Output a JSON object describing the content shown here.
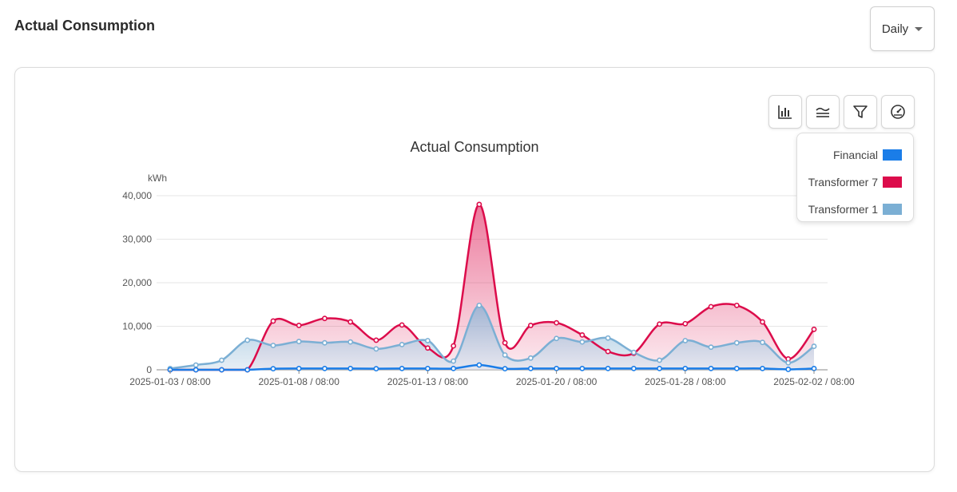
{
  "header": {
    "title": "Actual Consumption"
  },
  "period_select": {
    "value": "Daily"
  },
  "toolbar": [
    {
      "icon": "bar-chart-icon"
    },
    {
      "icon": "stacked-lines-icon"
    },
    {
      "icon": "filter-icon"
    },
    {
      "icon": "gauge-icon"
    }
  ],
  "legend": [
    {
      "label": "Financial",
      "color": "#1a7de8"
    },
    {
      "label": "Transformer 7",
      "color": "#dc0c4b"
    },
    {
      "label": "Transformer 1",
      "color": "#7bafd4"
    }
  ],
  "chart_data": {
    "type": "area",
    "title": "Actual Consumption",
    "ylabel": "kWh",
    "ylim": [
      0,
      40000
    ],
    "yticks": [
      0,
      10000,
      20000,
      30000,
      40000
    ],
    "ytick_labels": [
      "0",
      "10,000",
      "20,000",
      "30,000",
      "40,000"
    ],
    "xtick_labels": [
      "2025-01-03 / 08:00",
      "2025-01-08 / 08:00",
      "2025-01-13 / 08:00",
      "2025-01-20 / 08:00",
      "2025-01-28 / 08:00",
      "2025-02-02 / 08:00"
    ],
    "xtick_index": [
      0,
      5,
      10,
      15,
      20,
      25
    ],
    "grid": true,
    "legend_position": "top-right",
    "series": [
      {
        "name": "Transformer 7",
        "color": "#dc0c4b",
        "values": [
          0,
          0,
          0,
          0,
          11200,
          10200,
          11800,
          11000,
          6800,
          10300,
          5000,
          5500,
          38000,
          6200,
          10200,
          10800,
          8000,
          4200,
          3800,
          10500,
          10600,
          14500,
          14800,
          11000,
          2500,
          9300
        ]
      },
      {
        "name": "Transformer 1",
        "color": "#7bafd4",
        "values": [
          300,
          1100,
          2200,
          6800,
          5600,
          6500,
          6200,
          6400,
          4800,
          5800,
          6700,
          2000,
          14800,
          3400,
          2700,
          7200,
          6400,
          7300,
          4000,
          2200,
          6700,
          5200,
          6200,
          6300,
          1600,
          5400
        ]
      },
      {
        "name": "Financial",
        "color": "#1a7de8",
        "values": [
          0,
          0,
          0,
          0,
          250,
          300,
          300,
          300,
          250,
          300,
          300,
          300,
          1100,
          250,
          300,
          300,
          300,
          300,
          300,
          300,
          300,
          300,
          300,
          300,
          100,
          300
        ]
      }
    ]
  }
}
